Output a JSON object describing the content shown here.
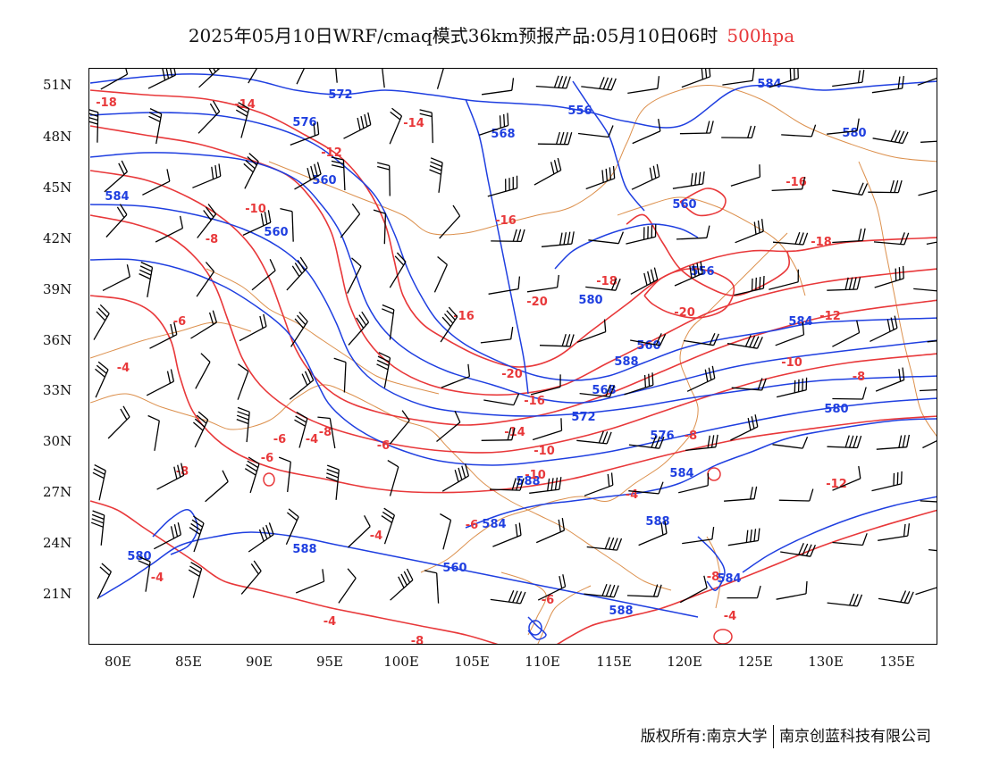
{
  "title": {
    "main": "2025年05月10日WRF/cmaq模式36km预报产品:05月10日06时",
    "level": "500hpa"
  },
  "axes": {
    "y_ticks": [
      "51N",
      "48N",
      "45N",
      "42N",
      "39N",
      "36N",
      "33N",
      "30N",
      "27N",
      "24N",
      "21N"
    ],
    "x_ticks": [
      "80E",
      "85E",
      "90E",
      "95E",
      "100E",
      "105E",
      "110E",
      "115E",
      "120E",
      "125E",
      "130E",
      "135E"
    ]
  },
  "footer": {
    "copyright": "版权所有:南京大学",
    "company": "南京创蓝科技有限公司"
  },
  "colors": {
    "height_contour": "#1f3fe0",
    "temperature_contour": "#e8383a",
    "coastline": "#d8843a",
    "wind_barb": "#000000",
    "level_text": "#e8383a"
  },
  "contour_labels": {
    "height": [
      "572",
      "576",
      "584",
      "556",
      "560",
      "568",
      "580",
      "560",
      "584",
      "560",
      "556",
      "580",
      "584",
      "560",
      "588",
      "568",
      "572",
      "576",
      "580",
      "584",
      "588",
      "584",
      "588",
      "588",
      "560",
      "580",
      "584",
      "588"
    ],
    "temperature": [
      "-18",
      "-14",
      "-14",
      "-12",
      "-10",
      "-8",
      "-16",
      "-18",
      "-16",
      "-18",
      "-20",
      "-20",
      "-16",
      "-12",
      "-10",
      "-8",
      "-4",
      "-20",
      "-16",
      "-14",
      "-10",
      "-8",
      "-6",
      "-4",
      "-8",
      "-6",
      "-6",
      "-8",
      "-10",
      "-12",
      "-4",
      "-6",
      "-4",
      "-4",
      "-6",
      "-8",
      "-4",
      "-4",
      "-8",
      "-6"
    ]
  }
}
